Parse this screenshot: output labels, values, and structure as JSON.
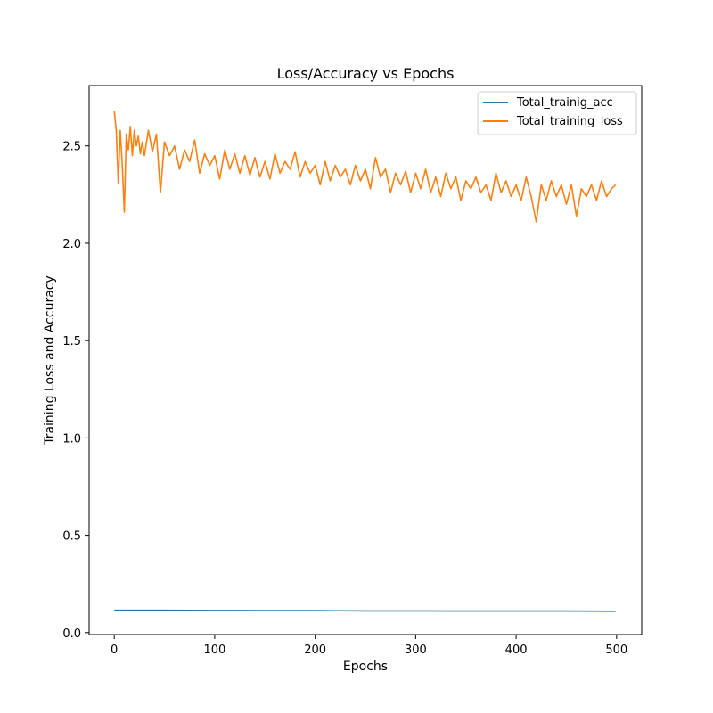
{
  "chart_data": {
    "type": "line",
    "title": "Loss/Accuracy vs Epochs",
    "xlabel": "Epochs",
    "ylabel": "Training Loss and Accuracy",
    "xlim": [
      -25,
      525
    ],
    "ylim": [
      -0.01,
      2.81
    ],
    "xticks": [
      0,
      100,
      200,
      300,
      400,
      500
    ],
    "yticks": [
      0.0,
      0.5,
      1.0,
      1.5,
      2.0,
      2.5
    ],
    "grid": false,
    "legend_position": "top-right",
    "series": [
      {
        "name": "Total_trainig_acc",
        "color": "#1f77b4",
        "x": [
          0,
          50,
          100,
          150,
          200,
          250,
          300,
          350,
          400,
          450,
          499
        ],
        "y": [
          0.115,
          0.115,
          0.114,
          0.113,
          0.113,
          0.112,
          0.112,
          0.111,
          0.111,
          0.111,
          0.11
        ]
      },
      {
        "name": "Total_training_loss",
        "color": "#ff7f0e",
        "x": [
          0,
          2,
          4,
          6,
          8,
          10,
          12,
          14,
          16,
          18,
          20,
          22,
          24,
          26,
          28,
          30,
          34,
          38,
          42,
          46,
          50,
          55,
          60,
          65,
          70,
          75,
          80,
          85,
          90,
          95,
          100,
          105,
          110,
          115,
          120,
          125,
          130,
          135,
          140,
          145,
          150,
          155,
          160,
          165,
          170,
          175,
          180,
          185,
          190,
          195,
          200,
          205,
          210,
          215,
          220,
          225,
          230,
          235,
          240,
          245,
          250,
          255,
          260,
          265,
          270,
          275,
          280,
          285,
          290,
          295,
          300,
          305,
          310,
          315,
          320,
          325,
          330,
          335,
          340,
          345,
          350,
          355,
          360,
          365,
          370,
          375,
          380,
          385,
          390,
          395,
          400,
          405,
          410,
          415,
          420,
          425,
          430,
          435,
          440,
          445,
          450,
          455,
          460,
          465,
          470,
          475,
          480,
          485,
          490,
          495,
          499
        ],
        "y": [
          2.68,
          2.58,
          2.31,
          2.58,
          2.4,
          2.16,
          2.56,
          2.48,
          2.6,
          2.45,
          2.58,
          2.5,
          2.55,
          2.46,
          2.52,
          2.45,
          2.58,
          2.47,
          2.56,
          2.26,
          2.52,
          2.45,
          2.5,
          2.38,
          2.48,
          2.42,
          2.53,
          2.36,
          2.46,
          2.4,
          2.45,
          2.33,
          2.48,
          2.38,
          2.46,
          2.36,
          2.45,
          2.35,
          2.44,
          2.34,
          2.42,
          2.33,
          2.46,
          2.36,
          2.42,
          2.38,
          2.47,
          2.34,
          2.42,
          2.36,
          2.4,
          2.3,
          2.42,
          2.32,
          2.4,
          2.34,
          2.38,
          2.3,
          2.4,
          2.32,
          2.38,
          2.28,
          2.44,
          2.34,
          2.38,
          2.26,
          2.36,
          2.3,
          2.37,
          2.26,
          2.36,
          2.28,
          2.38,
          2.26,
          2.34,
          2.24,
          2.36,
          2.28,
          2.34,
          2.22,
          2.32,
          2.28,
          2.34,
          2.26,
          2.3,
          2.22,
          2.36,
          2.26,
          2.32,
          2.24,
          2.3,
          2.22,
          2.34,
          2.24,
          2.11,
          2.3,
          2.22,
          2.32,
          2.24,
          2.3,
          2.2,
          2.3,
          2.14,
          2.28,
          2.24,
          2.3,
          2.22,
          2.32,
          2.24,
          2.28,
          2.3
        ]
      }
    ]
  }
}
